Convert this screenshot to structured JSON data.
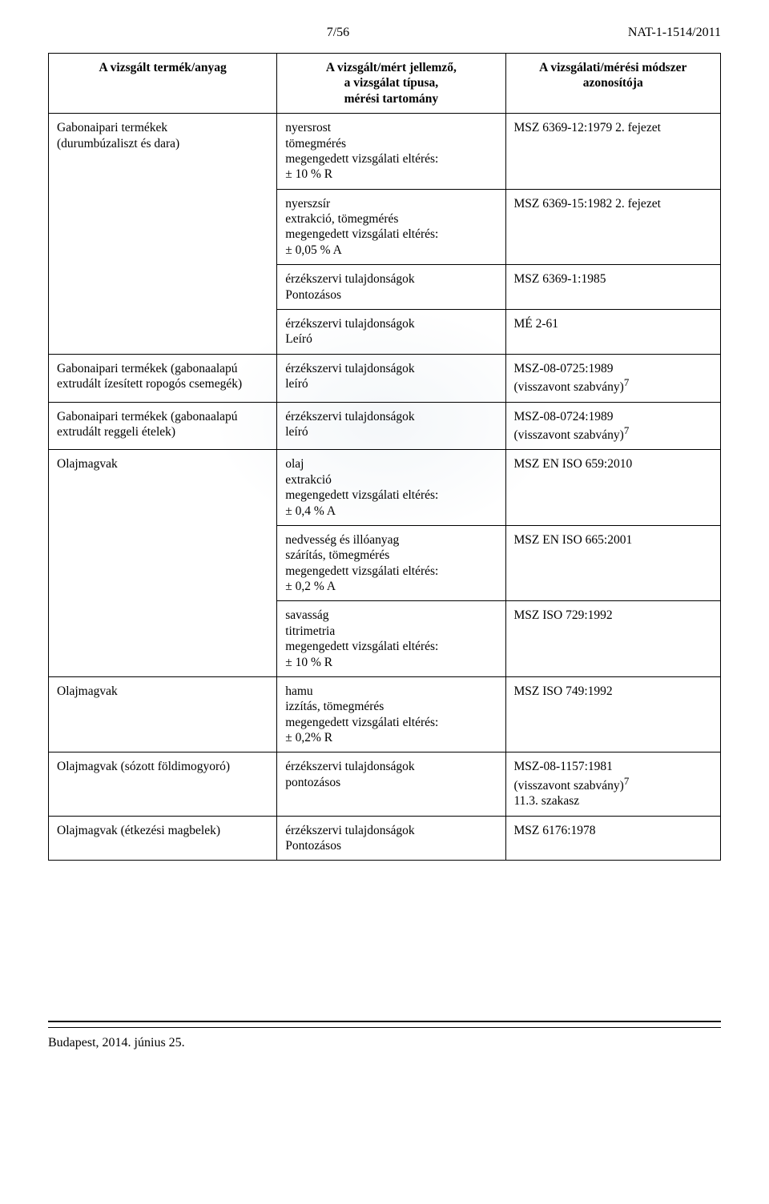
{
  "page_header": {
    "page_number": "7/56",
    "doc_id": "NAT-1-1514/2011"
  },
  "table": {
    "headers": {
      "col1": "A vizsgált termék/anyag",
      "col2_line1": "A vizsgált/mért jellemző,",
      "col2_line2": "a vizsgálat típusa,",
      "col2_line3": "mérési tartomány",
      "col3_line1": "A vizsgálati/mérési módszer",
      "col3_line2": "azonosítója"
    },
    "rows": [
      {
        "product_line1": "Gabonaipari termékek",
        "product_line2": "(durumbúzaliszt és dara)",
        "measure_line1": "nyersrost",
        "measure_line2": "tömegmérés",
        "measure_line3": "megengedett vizsgálati eltérés:",
        "measure_line4": "± 10 % R",
        "method": "MSZ 6369-12:1979 2. fejezet"
      },
      {
        "measure_line1": "nyerszsír",
        "measure_line2": "extrakció, tömegmérés",
        "measure_line3": "megengedett vizsgálati eltérés:",
        "measure_line4": "± 0,05 % A",
        "method": "MSZ 6369-15:1982 2. fejezet"
      },
      {
        "measure_line1": "érzékszervi tulajdonságok",
        "measure_line2": "Pontozásos",
        "method": "MSZ 6369-1:1985"
      },
      {
        "measure_line1": "érzékszervi tulajdonságok",
        "measure_line2": "Leíró",
        "method": "MÉ 2-61"
      },
      {
        "product_line1": "Gabonaipari termékek (gabonaalapú",
        "product_line2": "extrudált ízesített ropogós csemegék)",
        "measure_line1": "érzékszervi tulajdonságok",
        "measure_line2": "leíró",
        "method_line1": "MSZ-08-0725:1989",
        "method_line2": "(visszavont szabvány)",
        "method_sup": "7"
      },
      {
        "product_line1": "Gabonaipari termékek (gabonaalapú",
        "product_line2": "extrudált reggeli ételek)",
        "measure_line1": "érzékszervi tulajdonságok",
        "measure_line2": "leíró",
        "method_line1": "MSZ-08-0724:1989",
        "method_line2": "(visszavont szabvány)",
        "method_sup": "7"
      },
      {
        "product": "Olajmagvak",
        "measure_line1": "olaj",
        "measure_line2": "extrakció",
        "measure_line3": "megengedett vizsgálati eltérés:",
        "measure_line4": "± 0,4 % A",
        "method": "MSZ EN ISO 659:2010"
      },
      {
        "measure_line1": "nedvesség és illóanyag",
        "measure_line2": "szárítás, tömegmérés",
        "measure_line3": "megengedett vizsgálati eltérés:",
        "measure_line4": "± 0,2 % A",
        "method": "MSZ EN ISO 665:2001"
      },
      {
        "measure_line1": "savasság",
        "measure_line2": "titrimetria",
        "measure_line3": "megengedett vizsgálati eltérés:",
        "measure_line4": "± 10 % R",
        "method": "MSZ ISO 729:1992"
      },
      {
        "product": "Olajmagvak",
        "measure_line1": "hamu",
        "measure_line2": "izzítás, tömegmérés",
        "measure_line3": "megengedett vizsgálati eltérés:",
        "measure_line4": "± 0,2% R",
        "method": "MSZ ISO 749:1992"
      },
      {
        "product": "Olajmagvak (sózott földimogyoró)",
        "measure_line1": "érzékszervi tulajdonságok",
        "measure_line2": "pontozásos",
        "method_line1": "MSZ-08-1157:1981",
        "method_line2": "(visszavont szabvány)",
        "method_sup": "7",
        "method_line3": "11.3. szakasz"
      },
      {
        "product": "Olajmagvak (étkezési magbelek)",
        "measure_line1": "érzékszervi tulajdonságok",
        "measure_line2": "Pontozásos",
        "method": "MSZ 6176:1978"
      }
    ]
  },
  "footer": {
    "text": "Budapest, 2014. június 25."
  }
}
